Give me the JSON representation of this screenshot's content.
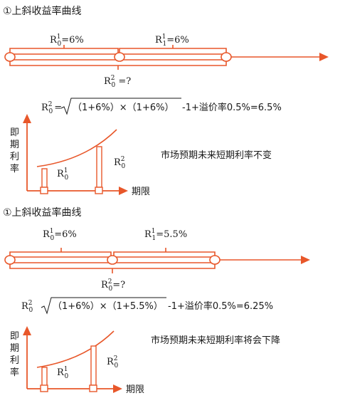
{
  "panels": [
    {
      "title": "①上斜收益率曲线",
      "seg1_label": "R",
      "seg1_sup": "1",
      "seg1_sub": "0",
      "seg1_value": "=6%",
      "seg2_label": "R",
      "seg2_sup": "1",
      "seg2_sub": "1",
      "seg2_value": "=6%",
      "long_label": "R",
      "long_sup": "2",
      "long_sub": "0",
      "long_value": " =?",
      "formula_lhs": "R",
      "formula_sup": "2",
      "formula_sub": "0",
      "formula_eq": "=",
      "formula_body": "（1+6%）×（1+6%）",
      "formula_tail": "-1+溢价率0.5%=6.5%",
      "axis_y": [
        "即",
        "期",
        "利",
        "率"
      ],
      "axis_x": "期限",
      "bar1_label": "R",
      "bar1_sup": "1",
      "bar1_sub": "0",
      "bar2_label": "R",
      "bar2_sup": "2",
      "bar2_sub": "0",
      "caption": "市场预期未来短期利率不变"
    },
    {
      "title": "①上斜收益率曲线",
      "seg1_label": "R",
      "seg1_sup": "1",
      "seg1_sub": "0",
      "seg1_value": "=6%",
      "seg2_label": "R",
      "seg2_sup": "1",
      "seg2_sub": "1",
      "seg2_value": "=5.5%",
      "long_label": "R",
      "long_sup": "2",
      "long_sub": "0",
      "long_value": "=?",
      "formula_lhs": "R",
      "formula_sup": "2",
      "formula_sub": "0",
      "formula_eq": "=",
      "formula_body": "（1+6%）×（1+5.5%）",
      "formula_tail": "-1+溢价率0.5%=6.25%",
      "axis_y": [
        "即",
        "期",
        "利",
        "率"
      ],
      "axis_x": "期限",
      "bar1_label": "R",
      "bar1_sup": "1",
      "bar1_sub": "0",
      "bar2_label": "R",
      "bar2_sup": "2",
      "bar2_sub": "0",
      "caption": "市场预期未来短期利率将会下降"
    }
  ],
  "colors": {
    "accent": "#e8572a",
    "text": "#1a1a1a"
  }
}
